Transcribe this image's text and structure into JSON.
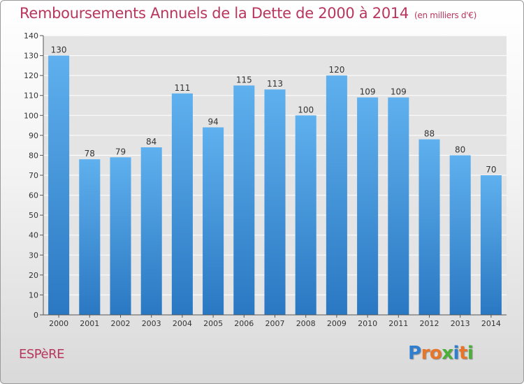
{
  "chart_data": {
    "type": "bar",
    "title": "Remboursements Annuels de la Dette de 2000 à 2014",
    "unit": "(en milliers d'€)",
    "categories": [
      "2000",
      "2001",
      "2002",
      "2003",
      "2004",
      "2005",
      "2006",
      "2007",
      "2008",
      "2009",
      "2010",
      "2011",
      "2012",
      "2013",
      "2014"
    ],
    "values": [
      130,
      78,
      79,
      84,
      111,
      94,
      115,
      113,
      100,
      120,
      109,
      109,
      88,
      80,
      70
    ],
    "ylim": [
      0,
      140
    ],
    "yticks": [
      0,
      10,
      20,
      30,
      40,
      50,
      60,
      70,
      80,
      90,
      100,
      110,
      120,
      130,
      140
    ],
    "grid": true,
    "bar_color": "#3f8fd6"
  },
  "footer": {
    "commune": "ESPèRE",
    "logo": {
      "text": "Proxiti",
      "letters": [
        "P",
        "r",
        "o",
        "x",
        "i",
        "t",
        "i"
      ],
      "colors": [
        "#2f7fd0",
        "#e7752a",
        "#e7752a",
        "#4caf3a",
        "#2f7fd0",
        "#e7752a",
        "#4caf3a"
      ]
    }
  }
}
